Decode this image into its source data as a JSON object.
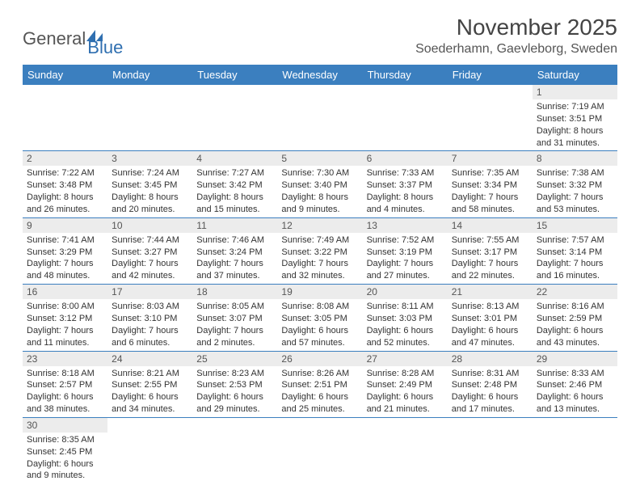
{
  "logo": {
    "word1": "General",
    "word2": "Blue"
  },
  "header": {
    "month": "November 2025",
    "location": "Soederhamn, Gaevleborg, Sweden"
  },
  "colors": {
    "header_bg": "#3b7fbf",
    "header_text": "#ffffff",
    "daynum_bg": "#ececec",
    "border": "#3b7fbf",
    "text": "#333333",
    "logo_blue": "#2f6fb0"
  },
  "weekdays": [
    "Sunday",
    "Monday",
    "Tuesday",
    "Wednesday",
    "Thursday",
    "Friday",
    "Saturday"
  ],
  "weeks": [
    [
      {
        "empty": true
      },
      {
        "empty": true
      },
      {
        "empty": true
      },
      {
        "empty": true
      },
      {
        "empty": true
      },
      {
        "empty": true
      },
      {
        "n": "1",
        "sr": "Sunrise: 7:19 AM",
        "ss": "Sunset: 3:51 PM",
        "d1": "Daylight: 8 hours",
        "d2": "and 31 minutes."
      }
    ],
    [
      {
        "n": "2",
        "sr": "Sunrise: 7:22 AM",
        "ss": "Sunset: 3:48 PM",
        "d1": "Daylight: 8 hours",
        "d2": "and 26 minutes."
      },
      {
        "n": "3",
        "sr": "Sunrise: 7:24 AM",
        "ss": "Sunset: 3:45 PM",
        "d1": "Daylight: 8 hours",
        "d2": "and 20 minutes."
      },
      {
        "n": "4",
        "sr": "Sunrise: 7:27 AM",
        "ss": "Sunset: 3:42 PM",
        "d1": "Daylight: 8 hours",
        "d2": "and 15 minutes."
      },
      {
        "n": "5",
        "sr": "Sunrise: 7:30 AM",
        "ss": "Sunset: 3:40 PM",
        "d1": "Daylight: 8 hours",
        "d2": "and 9 minutes."
      },
      {
        "n": "6",
        "sr": "Sunrise: 7:33 AM",
        "ss": "Sunset: 3:37 PM",
        "d1": "Daylight: 8 hours",
        "d2": "and 4 minutes."
      },
      {
        "n": "7",
        "sr": "Sunrise: 7:35 AM",
        "ss": "Sunset: 3:34 PM",
        "d1": "Daylight: 7 hours",
        "d2": "and 58 minutes."
      },
      {
        "n": "8",
        "sr": "Sunrise: 7:38 AM",
        "ss": "Sunset: 3:32 PM",
        "d1": "Daylight: 7 hours",
        "d2": "and 53 minutes."
      }
    ],
    [
      {
        "n": "9",
        "sr": "Sunrise: 7:41 AM",
        "ss": "Sunset: 3:29 PM",
        "d1": "Daylight: 7 hours",
        "d2": "and 48 minutes."
      },
      {
        "n": "10",
        "sr": "Sunrise: 7:44 AM",
        "ss": "Sunset: 3:27 PM",
        "d1": "Daylight: 7 hours",
        "d2": "and 42 minutes."
      },
      {
        "n": "11",
        "sr": "Sunrise: 7:46 AM",
        "ss": "Sunset: 3:24 PM",
        "d1": "Daylight: 7 hours",
        "d2": "and 37 minutes."
      },
      {
        "n": "12",
        "sr": "Sunrise: 7:49 AM",
        "ss": "Sunset: 3:22 PM",
        "d1": "Daylight: 7 hours",
        "d2": "and 32 minutes."
      },
      {
        "n": "13",
        "sr": "Sunrise: 7:52 AM",
        "ss": "Sunset: 3:19 PM",
        "d1": "Daylight: 7 hours",
        "d2": "and 27 minutes."
      },
      {
        "n": "14",
        "sr": "Sunrise: 7:55 AM",
        "ss": "Sunset: 3:17 PM",
        "d1": "Daylight: 7 hours",
        "d2": "and 22 minutes."
      },
      {
        "n": "15",
        "sr": "Sunrise: 7:57 AM",
        "ss": "Sunset: 3:14 PM",
        "d1": "Daylight: 7 hours",
        "d2": "and 16 minutes."
      }
    ],
    [
      {
        "n": "16",
        "sr": "Sunrise: 8:00 AM",
        "ss": "Sunset: 3:12 PM",
        "d1": "Daylight: 7 hours",
        "d2": "and 11 minutes."
      },
      {
        "n": "17",
        "sr": "Sunrise: 8:03 AM",
        "ss": "Sunset: 3:10 PM",
        "d1": "Daylight: 7 hours",
        "d2": "and 6 minutes."
      },
      {
        "n": "18",
        "sr": "Sunrise: 8:05 AM",
        "ss": "Sunset: 3:07 PM",
        "d1": "Daylight: 7 hours",
        "d2": "and 2 minutes."
      },
      {
        "n": "19",
        "sr": "Sunrise: 8:08 AM",
        "ss": "Sunset: 3:05 PM",
        "d1": "Daylight: 6 hours",
        "d2": "and 57 minutes."
      },
      {
        "n": "20",
        "sr": "Sunrise: 8:11 AM",
        "ss": "Sunset: 3:03 PM",
        "d1": "Daylight: 6 hours",
        "d2": "and 52 minutes."
      },
      {
        "n": "21",
        "sr": "Sunrise: 8:13 AM",
        "ss": "Sunset: 3:01 PM",
        "d1": "Daylight: 6 hours",
        "d2": "and 47 minutes."
      },
      {
        "n": "22",
        "sr": "Sunrise: 8:16 AM",
        "ss": "Sunset: 2:59 PM",
        "d1": "Daylight: 6 hours",
        "d2": "and 43 minutes."
      }
    ],
    [
      {
        "n": "23",
        "sr": "Sunrise: 8:18 AM",
        "ss": "Sunset: 2:57 PM",
        "d1": "Daylight: 6 hours",
        "d2": "and 38 minutes."
      },
      {
        "n": "24",
        "sr": "Sunrise: 8:21 AM",
        "ss": "Sunset: 2:55 PM",
        "d1": "Daylight: 6 hours",
        "d2": "and 34 minutes."
      },
      {
        "n": "25",
        "sr": "Sunrise: 8:23 AM",
        "ss": "Sunset: 2:53 PM",
        "d1": "Daylight: 6 hours",
        "d2": "and 29 minutes."
      },
      {
        "n": "26",
        "sr": "Sunrise: 8:26 AM",
        "ss": "Sunset: 2:51 PM",
        "d1": "Daylight: 6 hours",
        "d2": "and 25 minutes."
      },
      {
        "n": "27",
        "sr": "Sunrise: 8:28 AM",
        "ss": "Sunset: 2:49 PM",
        "d1": "Daylight: 6 hours",
        "d2": "and 21 minutes."
      },
      {
        "n": "28",
        "sr": "Sunrise: 8:31 AM",
        "ss": "Sunset: 2:48 PM",
        "d1": "Daylight: 6 hours",
        "d2": "and 17 minutes."
      },
      {
        "n": "29",
        "sr": "Sunrise: 8:33 AM",
        "ss": "Sunset: 2:46 PM",
        "d1": "Daylight: 6 hours",
        "d2": "and 13 minutes."
      }
    ],
    [
      {
        "n": "30",
        "sr": "Sunrise: 8:35 AM",
        "ss": "Sunset: 2:45 PM",
        "d1": "Daylight: 6 hours",
        "d2": "and 9 minutes."
      },
      {
        "empty": true
      },
      {
        "empty": true
      },
      {
        "empty": true
      },
      {
        "empty": true
      },
      {
        "empty": true
      },
      {
        "empty": true
      }
    ]
  ]
}
